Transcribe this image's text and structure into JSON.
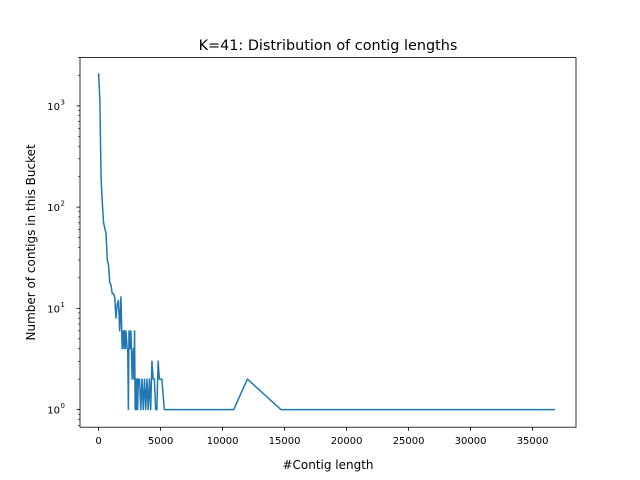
{
  "chart_data": {
    "type": "line",
    "title": "K=41: Distribution of contig lengths",
    "xlabel": "#Contig length",
    "ylabel": "Number of contigs in this Bucket",
    "xlim": [
      -1500,
      38500
    ],
    "ylim": [
      0.67,
      3000
    ],
    "yscale": "log",
    "grid": false,
    "line_color": "#1f77b4",
    "x_ticks": [
      {
        "value": 0,
        "label": "0"
      },
      {
        "value": 5000,
        "label": "5000"
      },
      {
        "value": 10000,
        "label": "10000"
      },
      {
        "value": 15000,
        "label": "15000"
      },
      {
        "value": 20000,
        "label": "20000"
      },
      {
        "value": 25000,
        "label": "25000"
      },
      {
        "value": 30000,
        "label": "30000"
      },
      {
        "value": 35000,
        "label": "35000"
      }
    ],
    "y_ticks": [
      {
        "value": 1,
        "base": "10",
        "exp": "0"
      },
      {
        "value": 10,
        "base": "10",
        "exp": "1"
      },
      {
        "value": 100,
        "base": "10",
        "exp": "2"
      },
      {
        "value": 1000,
        "base": "10",
        "exp": "3"
      }
    ],
    "series": [
      {
        "x": [
          0,
          100,
          200,
          300,
          400,
          500,
          600,
          700,
          800,
          900,
          1000,
          1100,
          1200,
          1300,
          1400,
          1500,
          1600,
          1700,
          1800,
          1900,
          2000,
          2050,
          2100,
          2150,
          2200,
          2250,
          2300,
          2350,
          2400,
          2450,
          2500,
          2550,
          2600,
          2650,
          2700,
          2750,
          2800,
          2850,
          2900,
          2950,
          3000,
          3050,
          3100,
          3150,
          3200,
          3250,
          3300,
          3400,
          3500,
          3600,
          3700,
          3800,
          3900,
          4000,
          4100,
          4200,
          4300,
          4400,
          4500,
          4600,
          4700,
          4800,
          4900,
          5000,
          5100,
          5300,
          5500,
          5700,
          5900,
          6100,
          6300,
          6500,
          6700,
          6900,
          7100,
          7300,
          7500,
          7600,
          9000,
          10900,
          12000,
          14700,
          20000,
          25000,
          30000,
          35000,
          36800
        ],
        "y": [
          2100,
          1150,
          190,
          110,
          70,
          62,
          55,
          30,
          27,
          18,
          17,
          14,
          14,
          13,
          8,
          11,
          12,
          6,
          13,
          4,
          6,
          4,
          6,
          4,
          6,
          5,
          4,
          4,
          1,
          6,
          5,
          4,
          6,
          4,
          2,
          3,
          4,
          2,
          6,
          1,
          2,
          1,
          2,
          1,
          2,
          2,
          2,
          1,
          2,
          1,
          2,
          1,
          2,
          1,
          2,
          1,
          3,
          2,
          2,
          1,
          1,
          3,
          2,
          2,
          2,
          1,
          1,
          1,
          1,
          1,
          1,
          1,
          1,
          1,
          1,
          1,
          1,
          1,
          1,
          1,
          2,
          1,
          1,
          1,
          1,
          1,
          1
        ]
      }
    ]
  }
}
